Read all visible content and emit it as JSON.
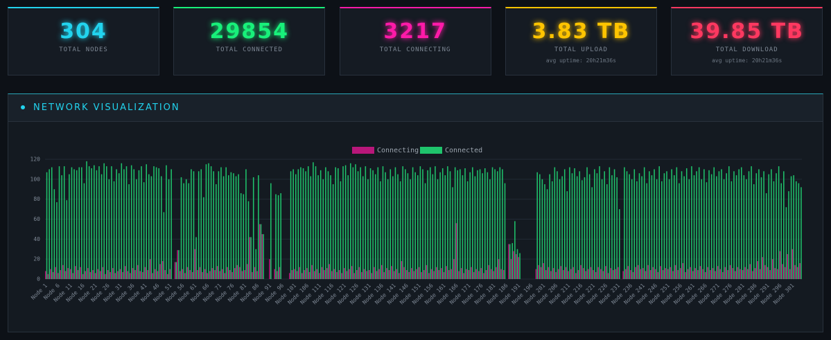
{
  "stats": [
    {
      "value": "304",
      "label": "TOTAL NODES",
      "color": "#22d3ee"
    },
    {
      "value": "29854",
      "label": "TOTAL CONNECTED",
      "color": "#18f07a"
    },
    {
      "value": "3217",
      "label": "TOTAL CONNECTING",
      "color": "#ff1aa8"
    },
    {
      "value": "3.83 TB",
      "label": "TOTAL UPLOAD",
      "subtitle": "avg uptime: 20h21m36s",
      "color": "#ffc400"
    },
    {
      "value": "39.85 TB",
      "label": "TOTAL DOWNLOAD",
      "subtitle": "avg uptime: 20h21m36s",
      "color": "#ff3860"
    }
  ],
  "panel": {
    "title": "NETWORK VISUALIZATION"
  },
  "chart_data": {
    "type": "bar",
    "ylim": [
      0,
      120
    ],
    "yticks": [
      0,
      20,
      40,
      60,
      80,
      100,
      120
    ],
    "grid": true,
    "legend": "top",
    "categories": [
      "Node 1",
      null,
      null,
      null,
      null,
      "Node 6",
      null,
      null,
      null,
      null,
      "Node 11",
      null,
      null,
      null,
      null,
      "Node 16",
      null,
      null,
      null,
      null,
      "Node 21",
      null,
      null,
      null,
      null,
      "Node 26",
      null,
      null,
      null,
      null,
      "Node 31",
      null,
      null,
      null,
      null,
      "Node 36",
      null,
      null,
      null,
      null,
      "Node 41",
      null,
      null,
      null,
      null,
      "Node 46",
      null,
      null,
      null,
      null,
      "Node 51",
      null,
      null,
      null,
      null,
      "Node 56",
      null,
      null,
      null,
      null,
      "Node 61",
      null,
      null,
      null,
      null,
      "Node 66",
      null,
      null,
      null,
      null,
      "Node 71",
      null,
      null,
      null,
      null,
      "Node 76",
      null,
      null,
      null,
      null,
      "Node 81",
      null,
      null,
      null,
      null,
      "Node 86",
      null,
      null,
      null,
      null,
      "Node 91",
      null,
      null,
      null,
      null,
      "Node 96",
      null,
      null,
      null,
      null,
      "Node 101",
      null,
      null,
      null,
      null,
      "Node 106",
      null,
      null,
      null,
      null,
      "Node 111",
      null,
      null,
      null,
      null,
      "Node 116",
      null,
      null,
      null,
      null,
      "Node 121",
      null,
      null,
      null,
      null,
      "Node 126",
      null,
      null,
      null,
      null,
      "Node 131",
      null,
      null,
      null,
      null,
      "Node 136",
      null,
      null,
      null,
      null,
      "Node 141",
      null,
      null,
      null,
      null,
      "Node 146",
      null,
      null,
      null,
      null,
      "Node 151",
      null,
      null,
      null,
      null,
      "Node 156",
      null,
      null,
      null,
      null,
      "Node 161",
      null,
      null,
      null,
      null,
      "Node 166",
      null,
      null,
      null,
      null,
      "Node 171",
      null,
      null,
      null,
      null,
      "Node 176",
      null,
      null,
      null,
      null,
      "Node 181",
      null,
      null,
      null,
      null,
      "Node 186",
      null,
      null,
      null,
      null,
      "Node 191",
      null,
      null,
      null,
      null,
      "Node 196",
      null,
      null,
      null,
      null,
      "Node 201",
      null,
      null,
      null,
      null,
      "Node 206",
      null,
      null,
      null,
      null,
      "Node 211",
      null,
      null,
      null,
      null,
      "Node 216",
      null,
      null,
      null,
      null,
      "Node 221",
      null,
      null,
      null,
      null,
      "Node 226",
      null,
      null,
      null,
      null,
      "Node 231",
      null,
      null,
      null,
      null,
      "Node 236",
      null,
      null,
      null,
      null,
      "Node 241",
      null,
      null,
      null,
      null,
      "Node 246",
      null,
      null,
      null,
      null,
      "Node 251",
      null,
      null,
      null,
      null,
      "Node 256",
      null,
      null,
      null,
      null,
      "Node 261",
      null,
      null,
      null,
      null,
      "Node 266",
      null,
      null,
      null,
      null,
      "Node 271",
      null,
      null,
      null,
      null,
      "Node 276",
      null,
      null,
      null,
      null,
      "Node 281",
      null,
      null,
      null,
      null,
      "Node 286",
      null,
      null,
      null,
      null,
      "Node 291",
      null,
      null,
      null,
      null,
      "Node 296",
      null,
      null,
      null,
      null,
      "Node 301",
      null,
      null,
      null
    ],
    "series": [
      {
        "name": "Connecting",
        "color": "#b8177a",
        "values": [
          8,
          5,
          10,
          7,
          12,
          6,
          9,
          14,
          8,
          11,
          10,
          6,
          13,
          9,
          12,
          5,
          8,
          11,
          7,
          9,
          6,
          10,
          8,
          12,
          5,
          9,
          7,
          11,
          6,
          8,
          10,
          7,
          13,
          8,
          6,
          11,
          9,
          14,
          8,
          7,
          12,
          9,
          20,
          6,
          10,
          8,
          15,
          18,
          9,
          5,
          10,
          0,
          17,
          29,
          8,
          10,
          6,
          12,
          9,
          7,
          30,
          9,
          12,
          7,
          10,
          6,
          8,
          11,
          9,
          13,
          8,
          10,
          6,
          12,
          9,
          7,
          11,
          14,
          12,
          8,
          9,
          15,
          42,
          7,
          12,
          8,
          55,
          45,
          0,
          0,
          20,
          0,
          10,
          8,
          12,
          0,
          0,
          0,
          6,
          9,
          10,
          8,
          12,
          6,
          9,
          11,
          7,
          14,
          8,
          10,
          6,
          12,
          9,
          11,
          15,
          8,
          10,
          7,
          9,
          6,
          11,
          8,
          10,
          13,
          6,
          9,
          12,
          7,
          10,
          8,
          9,
          6,
          12,
          8,
          10,
          14,
          7,
          11,
          9,
          13,
          8,
          10,
          6,
          18,
          12,
          9,
          7,
          11,
          8,
          10,
          12,
          7,
          9,
          14,
          6,
          10,
          8,
          12,
          9,
          11,
          7,
          13,
          9,
          10,
          20,
          56,
          8,
          11,
          6,
          10,
          9,
          12,
          7,
          10,
          8,
          11,
          6,
          9,
          14,
          10,
          8,
          12,
          20,
          10,
          9,
          0,
          35,
          20,
          28,
          25,
          22,
          0,
          0,
          0,
          0,
          0,
          0,
          10,
          14,
          12,
          16,
          9,
          12,
          8,
          11,
          7,
          10,
          13,
          9,
          12,
          8,
          10,
          12,
          6,
          9,
          14,
          11,
          8,
          10,
          12,
          9,
          7,
          12,
          10,
          8,
          13,
          6,
          11,
          9,
          10,
          12,
          0,
          8,
          10,
          13,
          9,
          7,
          12,
          14,
          10,
          11,
          8,
          14,
          9,
          12,
          10,
          7,
          13,
          9,
          11,
          10,
          12,
          8,
          14,
          9,
          11,
          16,
          7,
          10,
          12,
          8,
          11,
          9,
          13,
          10,
          7,
          12,
          9,
          11,
          8,
          13,
          10,
          7,
          12,
          9,
          14,
          11,
          8,
          12,
          10,
          9,
          12,
          10,
          15,
          8,
          11,
          18,
          10,
          22,
          14,
          12,
          9,
          20,
          11,
          10,
          28,
          15,
          12,
          25,
          10,
          30,
          14,
          12,
          16
        ]
      },
      {
        "name": "Connected",
        "color": "#1fc46c",
        "values": [
          107,
          110,
          112,
          90,
          77,
          113,
          104,
          113,
          79,
          105,
          112,
          110,
          109,
          112,
          112,
          96,
          118,
          113,
          111,
          114,
          109,
          113,
          105,
          116,
          113,
          100,
          113,
          98,
          110,
          106,
          116,
          110,
          113,
          95,
          114,
          110,
          100,
          109,
          113,
          97,
          115,
          105,
          103,
          113,
          112,
          111,
          103,
          67,
          114,
          100,
          110,
          0,
          17,
          29,
          102,
          96,
          100,
          96,
          110,
          108,
          42,
          108,
          110,
          82,
          115,
          116,
          113,
          108,
          95,
          108,
          112,
          103,
          112,
          104,
          107,
          106,
          103,
          105,
          86,
          85,
          110,
          78,
          42,
          102,
          30,
          104,
          55,
          45,
          0,
          0,
          96,
          0,
          85,
          84,
          86,
          0,
          0,
          0,
          108,
          110,
          105,
          110,
          112,
          111,
          108,
          113,
          103,
          117,
          113,
          104,
          109,
          100,
          112,
          108,
          104,
          95,
          112,
          111,
          98,
          113,
          114,
          104,
          116,
          112,
          115,
          108,
          112,
          103,
          113,
          100,
          111,
          109,
          105,
          112,
          98,
          113,
          107,
          100,
          110,
          103,
          112,
          105,
          98,
          113,
          110,
          106,
          100,
          112,
          107,
          104,
          113,
          110,
          96,
          109,
          112,
          105,
          113,
          100,
          107,
          111,
          104,
          113,
          108,
          92,
          112,
          109,
          110,
          104,
          111,
          98,
          107,
          112,
          103,
          109,
          110,
          106,
          111,
          107,
          100,
          112,
          110,
          108,
          112,
          110,
          96,
          0,
          35,
          36,
          58,
          30,
          26,
          0,
          0,
          0,
          0,
          0,
          0,
          107,
          105,
          100,
          95,
          90,
          105,
          98,
          112,
          108,
          100,
          103,
          110,
          88,
          112,
          106,
          111,
          103,
          108,
          99,
          102,
          112,
          105,
          92,
          110,
          106,
          113,
          100,
          108,
          95,
          112,
          104,
          110,
          102,
          70,
          0,
          112,
          108,
          105,
          100,
          110,
          98,
          106,
          103,
          112,
          96,
          108,
          104,
          110,
          100,
          113,
          98,
          106,
          108,
          100,
          110,
          104,
          112,
          96,
          108,
          103,
          111,
          100,
          113,
          104,
          108,
          112,
          100,
          110,
          97,
          109,
          105,
          112,
          103,
          108,
          110,
          100,
          106,
          113,
          98,
          108,
          104,
          110,
          112,
          104,
          100,
          108,
          113,
          95,
          106,
          110,
          102,
          108,
          86,
          105,
          110,
          98,
          106,
          113,
          96,
          108,
          72,
          88,
          103,
          104,
          98,
          96,
          92
        ]
      }
    ]
  }
}
